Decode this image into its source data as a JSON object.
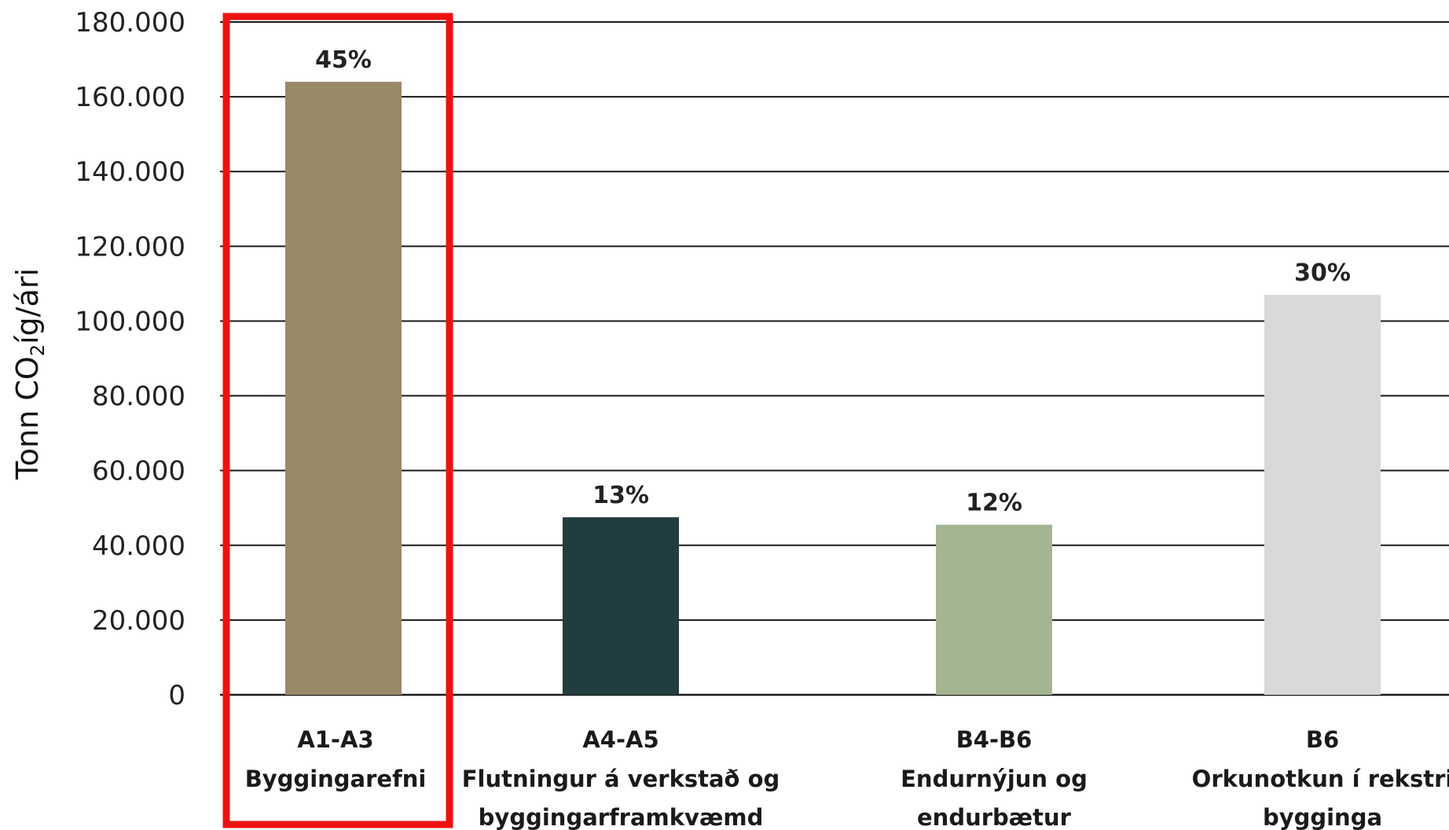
{
  "chart_data": {
    "type": "bar",
    "ylabel_main": "Tonn CO",
    "ylabel_sub": "2",
    "ylabel_tail": "íg/ári",
    "ylim": [
      0,
      180000
    ],
    "y_ticks": [
      0,
      20000,
      40000,
      60000,
      80000,
      100000,
      120000,
      140000,
      160000,
      180000
    ],
    "y_tick_labels": [
      "0",
      "20.000",
      "40.000",
      "60.000",
      "80.000",
      "100.000",
      "120.000",
      "140.000",
      "160.000",
      "180.000"
    ],
    "grid": true,
    "categories": [
      {
        "code": "A1-A3",
        "lines": [
          "Byggingarefni"
        ]
      },
      {
        "code": "A4-A5",
        "lines": [
          "Flutningur á verkstað og",
          "byggingarframkvæmd"
        ]
      },
      {
        "code": "B4-B6",
        "lines": [
          "Endurnýjun og",
          "endurbætur"
        ]
      },
      {
        "code": "B6",
        "lines": [
          "Orkunotkun í rekstri",
          "bygginga"
        ]
      }
    ],
    "values": [
      164000,
      47500,
      45500,
      107000
    ],
    "percent_labels": [
      "45%",
      "13%",
      "12%",
      "30%"
    ],
    "colors": [
      "#9a8967",
      "#223d40",
      "#a3b591",
      "#d9d9d9"
    ],
    "highlight": {
      "category_index": 0,
      "color": "#ee1111"
    }
  }
}
